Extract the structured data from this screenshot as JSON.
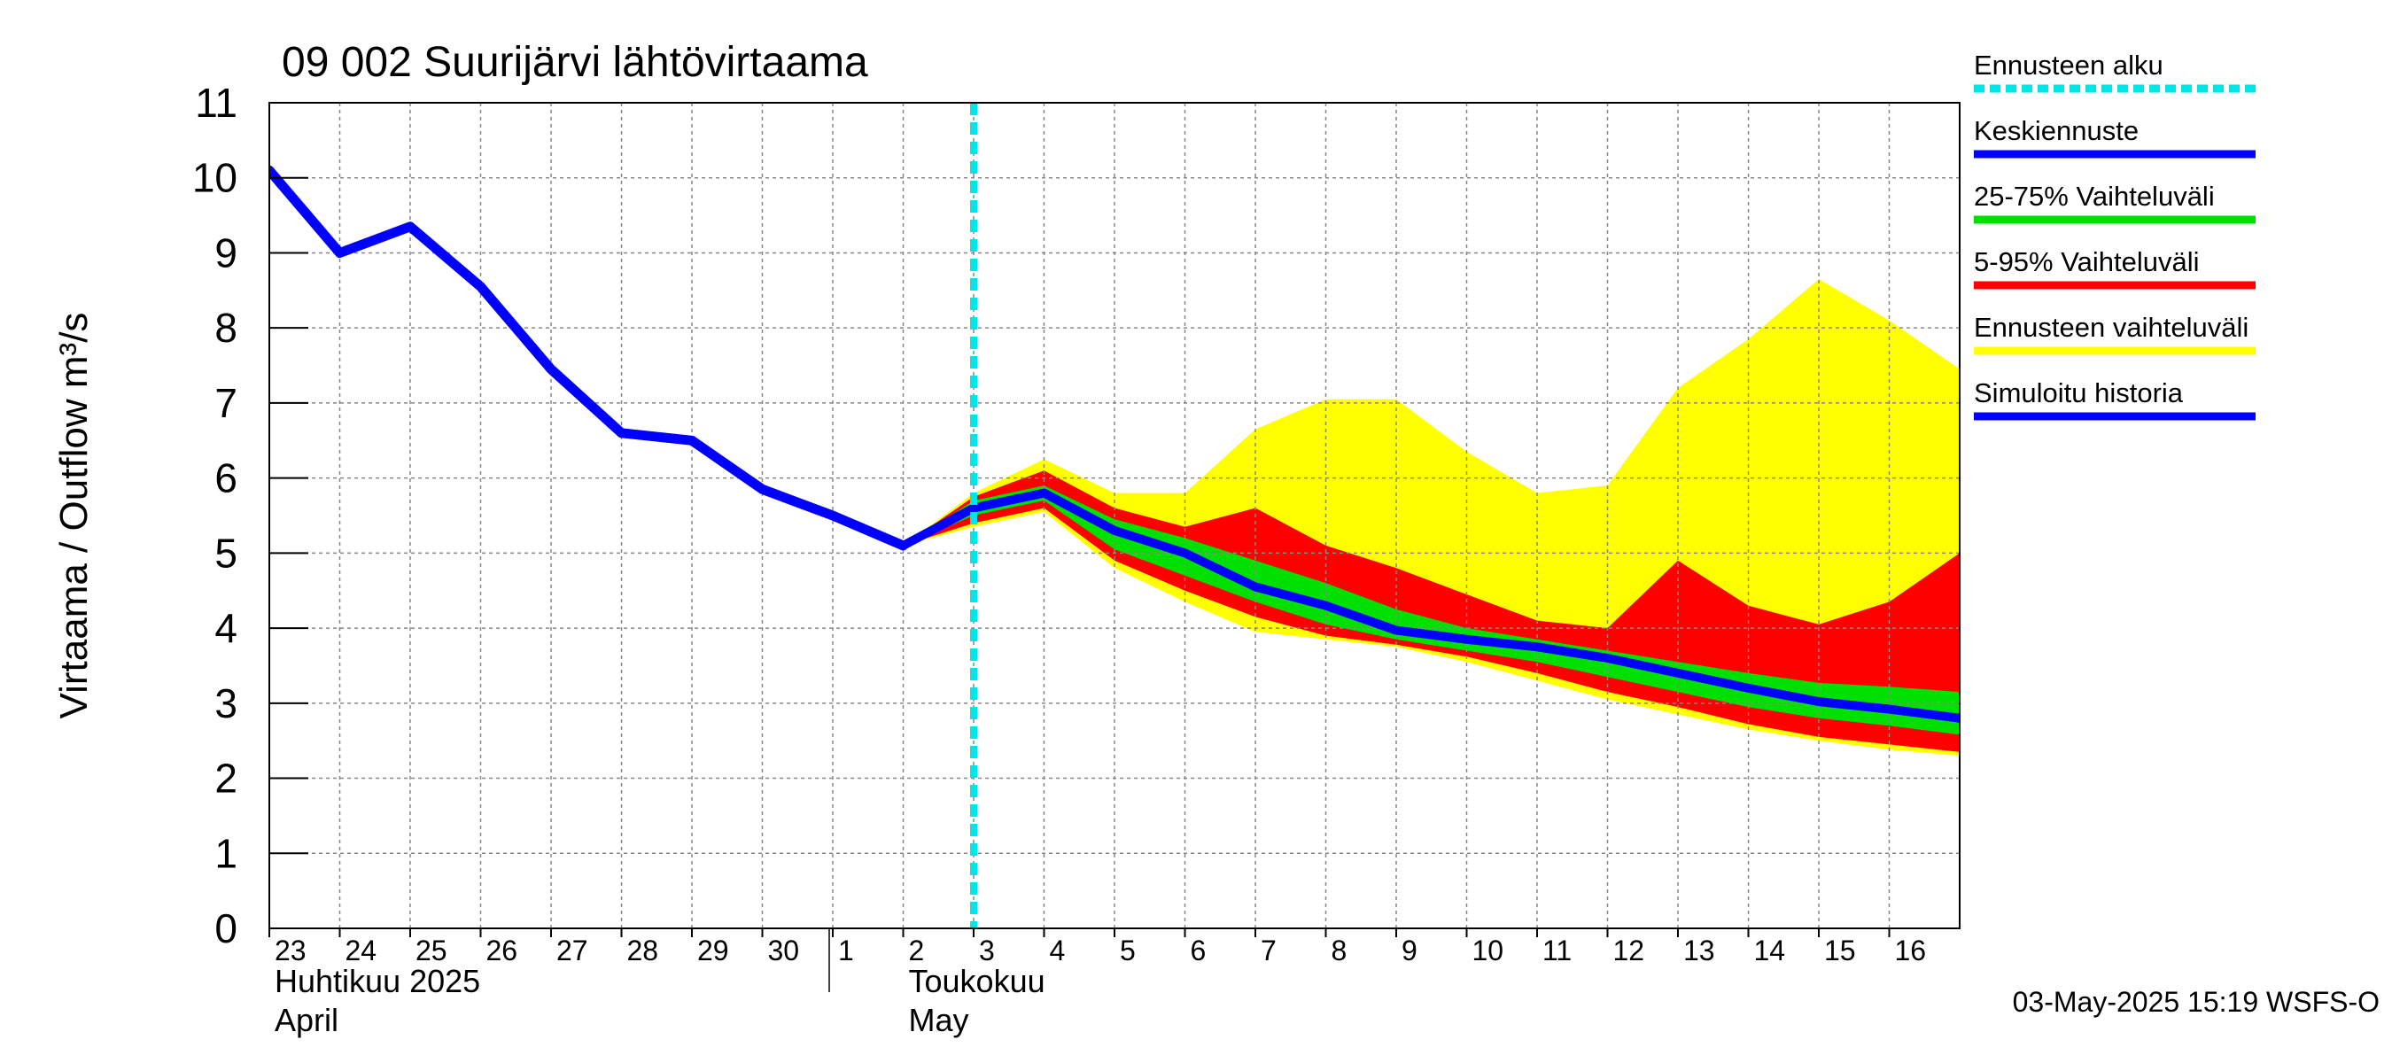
{
  "chart_data": {
    "type": "area",
    "title": "09 002 Suurijärvi lähtövirtaama",
    "ylabel": "Virtaama / Outflow    m³/s",
    "ylim": [
      0,
      11
    ],
    "yticks": [
      0,
      1,
      2,
      3,
      4,
      5,
      6,
      7,
      8,
      9,
      10,
      11
    ],
    "x_start": "2025-04-23",
    "x_end": "2025-05-17",
    "xtick_dates": [
      "2025-04-23",
      "2025-04-24",
      "2025-04-25",
      "2025-04-26",
      "2025-04-27",
      "2025-04-28",
      "2025-04-29",
      "2025-04-30",
      "2025-05-01",
      "2025-05-02",
      "2025-05-03",
      "2025-05-04",
      "2025-05-05",
      "2025-05-06",
      "2025-05-07",
      "2025-05-08",
      "2025-05-09",
      "2025-05-10",
      "2025-05-11",
      "2025-05-12",
      "2025-05-13",
      "2025-05-14",
      "2025-05-15",
      "2025-05-16"
    ],
    "xtick_labels": [
      "23",
      "24",
      "25",
      "26",
      "27",
      "28",
      "29",
      "30",
      "1",
      "2",
      "3",
      "4",
      "5",
      "6",
      "7",
      "8",
      "9",
      "10",
      "11",
      "12",
      "13",
      "14",
      "15",
      "16"
    ],
    "month_labels": [
      {
        "date": "2025-04-23",
        "line1": "Huhtikuu  2025",
        "line2": "April"
      },
      {
        "date": "2025-05-02",
        "line1": "Toukokuu",
        "line2": "May"
      }
    ],
    "month_divider_date": "2025-05-01",
    "forecast_start": "2025-05-03",
    "grid": true,
    "legend_position": "right",
    "legend": [
      {
        "label": "Ennusteen alku",
        "color": "#00e5e5",
        "style": "dashed"
      },
      {
        "label": "Keskiennuste",
        "color": "#0000ff",
        "style": "solid"
      },
      {
        "label": "25-75% Vaihteluväli",
        "color": "#00e000",
        "style": "solid"
      },
      {
        "label": "5-95% Vaihteluväli",
        "color": "#ff0000",
        "style": "solid"
      },
      {
        "label": "Ennusteen vaihteluväli",
        "color": "#ffff00",
        "style": "solid"
      },
      {
        "label": "Simuloitu historia",
        "color": "#0000ff",
        "style": "solid"
      }
    ],
    "colors": {
      "yellow": "#ffff00",
      "red": "#ff0000",
      "green": "#00e000",
      "blue": "#0000ff",
      "cyan": "#00e5e5",
      "grid": "#888888"
    },
    "history": {
      "name": "Simuloitu historia",
      "x": [
        "2025-04-23",
        "2025-04-24",
        "2025-04-25",
        "2025-04-26",
        "2025-04-27",
        "2025-04-28",
        "2025-04-29",
        "2025-04-30",
        "2025-05-01",
        "2025-05-02"
      ],
      "y": [
        10.1,
        9.0,
        9.35,
        8.55,
        7.45,
        6.6,
        6.5,
        5.85,
        5.5,
        5.1
      ]
    },
    "forecast": {
      "x": [
        "2025-05-02",
        "2025-05-03",
        "2025-05-04",
        "2025-05-05",
        "2025-05-06",
        "2025-05-07",
        "2025-05-08",
        "2025-05-09",
        "2025-05-10",
        "2025-05-11",
        "2025-05-12",
        "2025-05-13",
        "2025-05-14",
        "2025-05-15",
        "2025-05-16",
        "2025-05-17"
      ],
      "median": [
        5.1,
        5.6,
        5.8,
        5.3,
        5.0,
        4.55,
        4.3,
        3.97,
        3.85,
        3.75,
        3.6,
        3.4,
        3.2,
        3.02,
        2.92,
        2.8
      ],
      "p25": [
        5.1,
        5.5,
        5.7,
        5.05,
        4.7,
        4.35,
        4.05,
        3.85,
        3.7,
        3.55,
        3.35,
        3.15,
        2.95,
        2.8,
        2.7,
        2.58
      ],
      "p75": [
        5.1,
        5.7,
        5.9,
        5.45,
        5.2,
        4.9,
        4.6,
        4.25,
        4.0,
        3.85,
        3.7,
        3.55,
        3.4,
        3.27,
        3.22,
        3.15
      ],
      "p05": [
        5.1,
        5.4,
        5.6,
        4.9,
        4.5,
        4.15,
        3.9,
        3.78,
        3.62,
        3.4,
        3.15,
        2.95,
        2.72,
        2.55,
        2.45,
        2.35
      ],
      "p95": [
        5.1,
        5.75,
        6.1,
        5.6,
        5.35,
        5.6,
        5.1,
        4.8,
        4.45,
        4.1,
        4.0,
        4.9,
        4.3,
        4.05,
        4.35,
        5.0
      ],
      "min": [
        5.1,
        5.35,
        5.55,
        4.8,
        4.35,
        3.95,
        3.85,
        3.75,
        3.55,
        3.3,
        3.05,
        2.85,
        2.65,
        2.5,
        2.38,
        2.3
      ],
      "max": [
        5.1,
        5.8,
        6.25,
        5.8,
        5.8,
        6.65,
        7.05,
        7.05,
        6.35,
        5.8,
        5.9,
        7.2,
        7.85,
        8.65,
        8.1,
        7.45
      ]
    }
  },
  "footer": {
    "timestamp": "03-May-2025 15:19 WSFS-O"
  }
}
